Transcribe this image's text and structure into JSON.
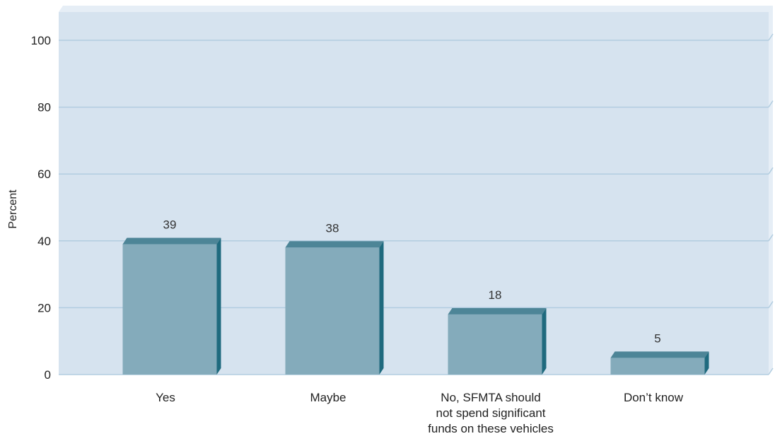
{
  "chart_data": {
    "type": "bar",
    "categories": [
      [
        "Yes"
      ],
      [
        "Maybe"
      ],
      [
        "No, SFMTA should",
        "not spend significant",
        "funds on these vehicles"
      ],
      [
        "Don’t know"
      ]
    ],
    "values": [
      39,
      38,
      18,
      5
    ],
    "data_labels": [
      "39",
      "38",
      "18",
      "5"
    ],
    "ylabel": "Percent",
    "xlabel": "",
    "ylim": [
      0,
      100
    ],
    "yticks": [
      "0",
      "20",
      "40",
      "60",
      "80",
      "100"
    ],
    "grid": true,
    "style": "3d-bars"
  },
  "colors": {
    "plot_background": "#d6e3ef",
    "plot_side": "#e6eef6",
    "grid_line": "#b2cde0",
    "bar_front": "#84abbb",
    "bar_top": "#4d8597",
    "bar_side": "#1f6a7e"
  }
}
